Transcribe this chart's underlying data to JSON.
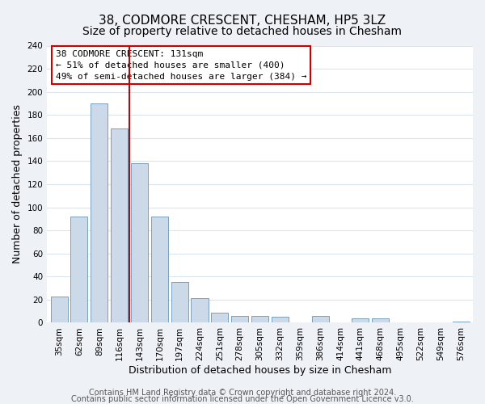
{
  "title": "38, CODMORE CRESCENT, CHESHAM, HP5 3LZ",
  "subtitle": "Size of property relative to detached houses in Chesham",
  "xlabel": "Distribution of detached houses by size in Chesham",
  "ylabel": "Number of detached properties",
  "categories": [
    "35sqm",
    "62sqm",
    "89sqm",
    "116sqm",
    "143sqm",
    "170sqm",
    "197sqm",
    "224sqm",
    "251sqm",
    "278sqm",
    "305sqm",
    "332sqm",
    "359sqm",
    "386sqm",
    "414sqm",
    "441sqm",
    "468sqm",
    "495sqm",
    "522sqm",
    "549sqm",
    "576sqm"
  ],
  "values": [
    23,
    92,
    190,
    168,
    138,
    92,
    35,
    21,
    9,
    6,
    6,
    5,
    0,
    6,
    0,
    4,
    4,
    0,
    0,
    0,
    1
  ],
  "bar_color": "#ccd9e8",
  "bar_edge_color": "#7aa0be",
  "ylim": [
    0,
    240
  ],
  "yticks": [
    0,
    20,
    40,
    60,
    80,
    100,
    120,
    140,
    160,
    180,
    200,
    220,
    240
  ],
  "annotation_title": "38 CODMORE CRESCENT: 131sqm",
  "annotation_line1": "← 51% of detached houses are smaller (400)",
  "annotation_line2": "49% of semi-detached houses are larger (384) →",
  "annotation_box_color": "#ffffff",
  "annotation_border_color": "#cc0000",
  "vline_x_index": 3,
  "footnote1": "Contains HM Land Registry data © Crown copyright and database right 2024.",
  "footnote2": "Contains public sector information licensed under the Open Government Licence v3.0.",
  "background_color": "#eef2f7",
  "plot_background_color": "#ffffff",
  "grid_color": "#d8e4f0",
  "title_fontsize": 11,
  "subtitle_fontsize": 10,
  "axis_label_fontsize": 9,
  "tick_fontsize": 7.5,
  "footnote_fontsize": 7
}
